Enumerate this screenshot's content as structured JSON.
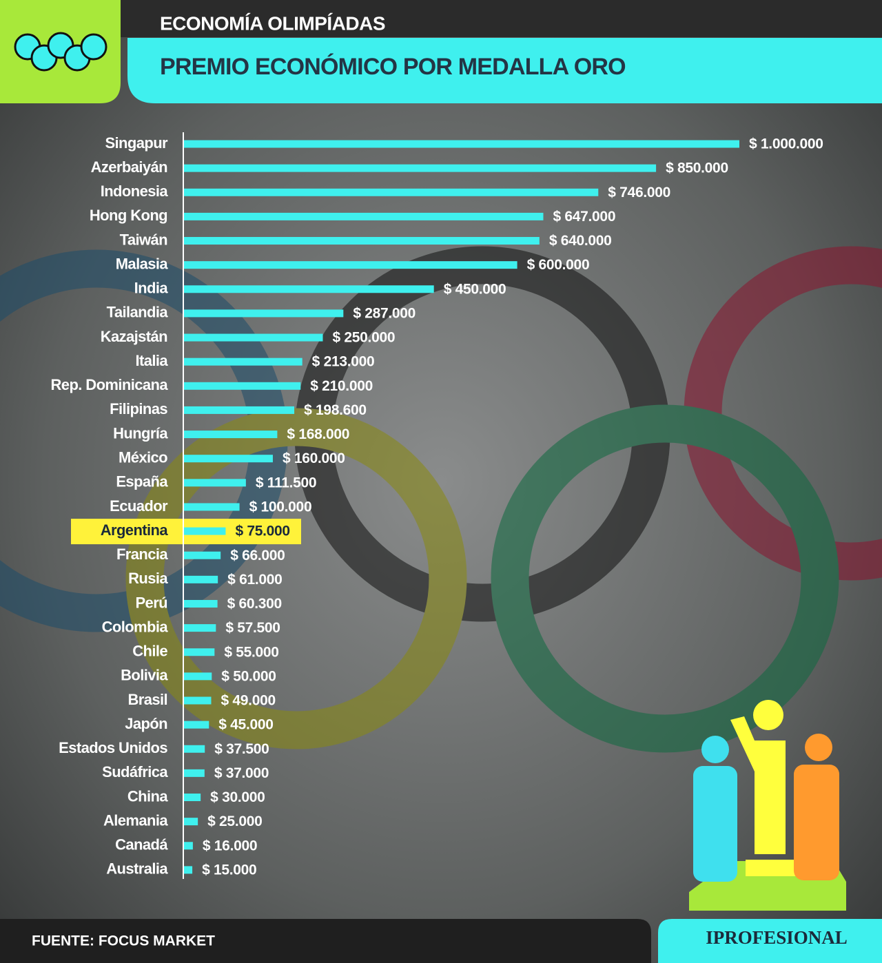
{
  "chart_data": {
    "type": "bar",
    "orientation": "horizontal",
    "title": "ECONOMÍA OLIMPÍADAS",
    "subtitle": "PREMIO ECONÓMICO POR MEDALLA ORO",
    "source": "FUENTE: FOCUS MARKET",
    "brand": "IPROFESIONAL",
    "categories": [
      "Singapur",
      "Azerbaiyán",
      "Indonesia",
      "Hong Kong",
      "Taiwán",
      "Malasia",
      "India",
      "Tailandia",
      "Kazajstán",
      "Italia",
      "Rep. Dominicana",
      "Filipinas",
      "Hungría",
      "México",
      "España",
      "Ecuador",
      "Argentina",
      "Francia",
      "Rusia",
      "Perú",
      "Colombia",
      "Chile",
      "Bolivia",
      "Brasil",
      "Japón",
      "Estados Unidos",
      "Sudáfrica",
      "China",
      "Alemania",
      "Canadá",
      "Australia"
    ],
    "values": [
      1000000,
      850000,
      746000,
      647000,
      640000,
      600000,
      450000,
      287000,
      250000,
      213000,
      210000,
      198600,
      168000,
      160000,
      111500,
      100000,
      75000,
      66000,
      61000,
      60300,
      57500,
      55000,
      50000,
      49000,
      45000,
      37500,
      37000,
      30000,
      25000,
      16000,
      15000
    ],
    "value_labels": [
      "$ 1.000.000",
      "$ 850.000",
      "$ 746.000",
      "$ 647.000",
      "$ 640.000",
      "$ 600.000",
      "$ 450.000",
      "$ 287.000",
      "$ 250.000",
      "$ 213.000",
      "$ 210.000",
      "$ 198.600",
      "$ 168.000",
      "$ 160.000",
      "$ 111.500",
      "$ 100.000",
      "$ 75.000",
      "$ 66.000",
      "$ 61.000",
      "$ 60.300",
      "$ 57.500",
      "$ 55.000",
      "$ 50.000",
      "$ 49.000",
      "$ 45.000",
      "$ 37.500",
      "$ 37.000",
      "$ 30.000",
      "$ 25.000",
      "$ 16.000",
      "$ 15.000"
    ],
    "color": "#3ff0ee",
    "highlight_index": 16,
    "highlight_color": "#fff23a",
    "xlim": [
      0,
      1000000
    ]
  }
}
